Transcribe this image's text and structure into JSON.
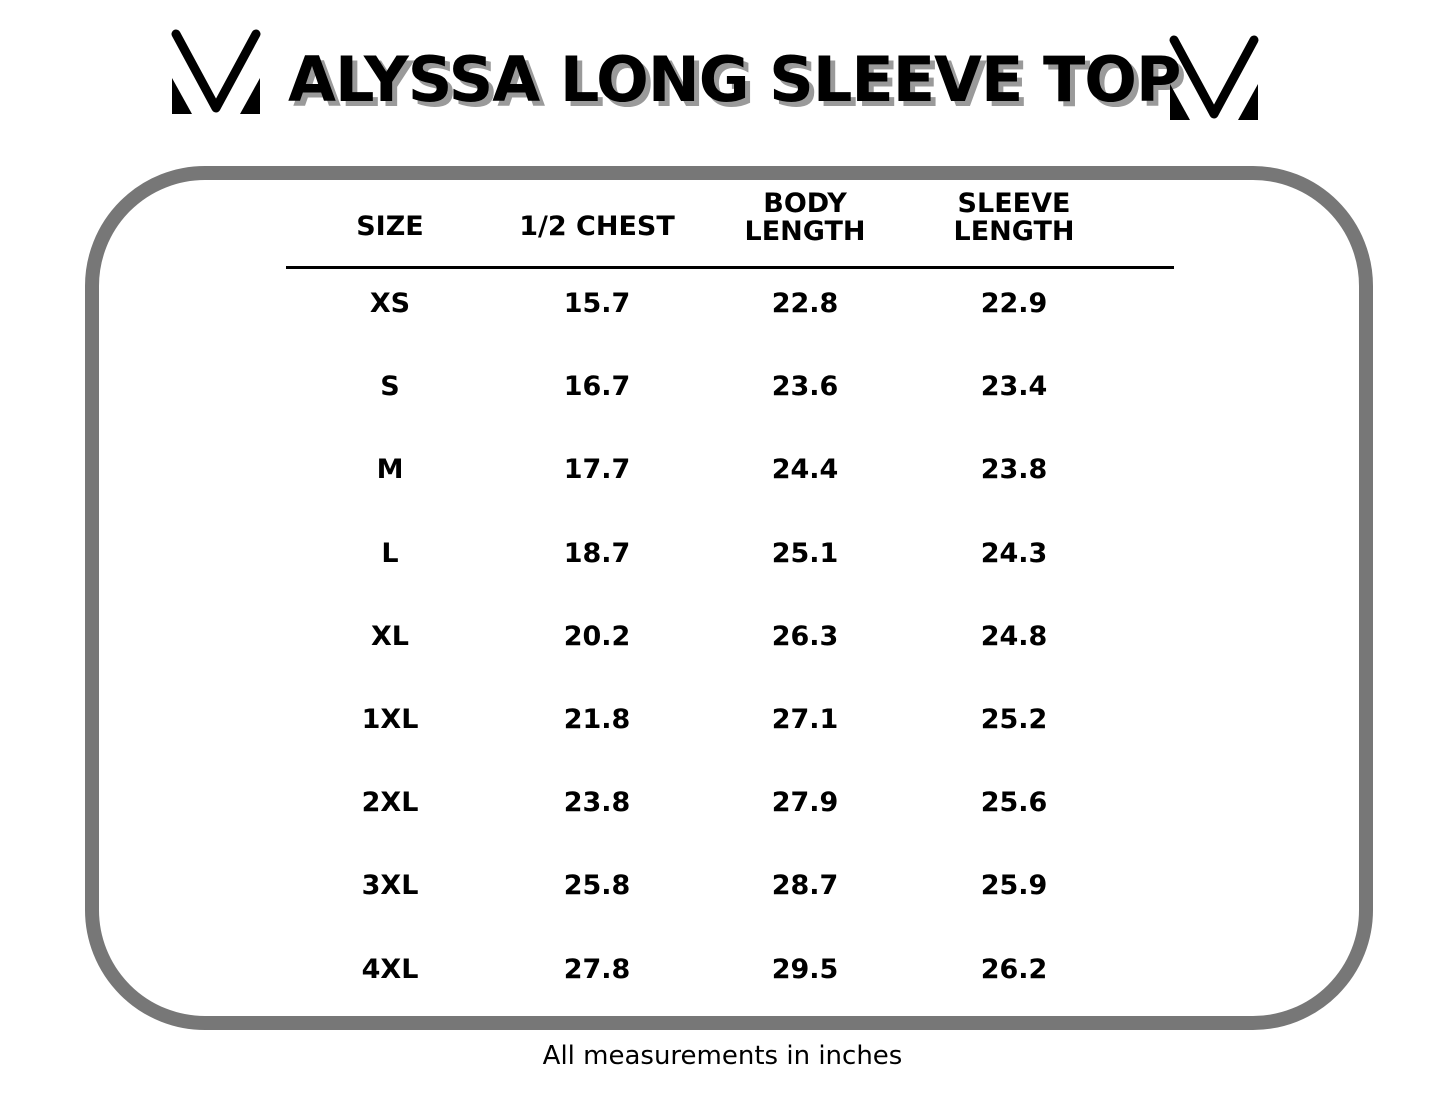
{
  "title": "ALYSSA LONG SLEEVE TOP",
  "logo": {
    "icon": "v-logo-icon"
  },
  "table": {
    "headers": [
      [
        "SIZE"
      ],
      [
        "1/2 CHEST"
      ],
      [
        "BODY",
        "LENGTH"
      ],
      [
        "SLEEVE",
        "LENGTH"
      ]
    ],
    "rows": [
      [
        "XS",
        "15.7",
        "22.8",
        "22.9"
      ],
      [
        "S",
        "16.7",
        "23.6",
        "23.4"
      ],
      [
        "M",
        "17.7",
        "24.4",
        "23.8"
      ],
      [
        "L",
        "18.7",
        "25.1",
        "24.3"
      ],
      [
        "XL",
        "20.2",
        "26.3",
        "24.8"
      ],
      [
        "1XL",
        "21.8",
        "27.1",
        "25.2"
      ],
      [
        "2XL",
        "23.8",
        "27.9",
        "25.6"
      ],
      [
        "3XL",
        "25.8",
        "28.7",
        "25.9"
      ],
      [
        "4XL",
        "27.8",
        "29.5",
        "26.2"
      ]
    ]
  },
  "footer": "All measurements in inches",
  "colors": {
    "frame": "#777777",
    "text": "#000000",
    "shadow": "#9a9a9a"
  }
}
